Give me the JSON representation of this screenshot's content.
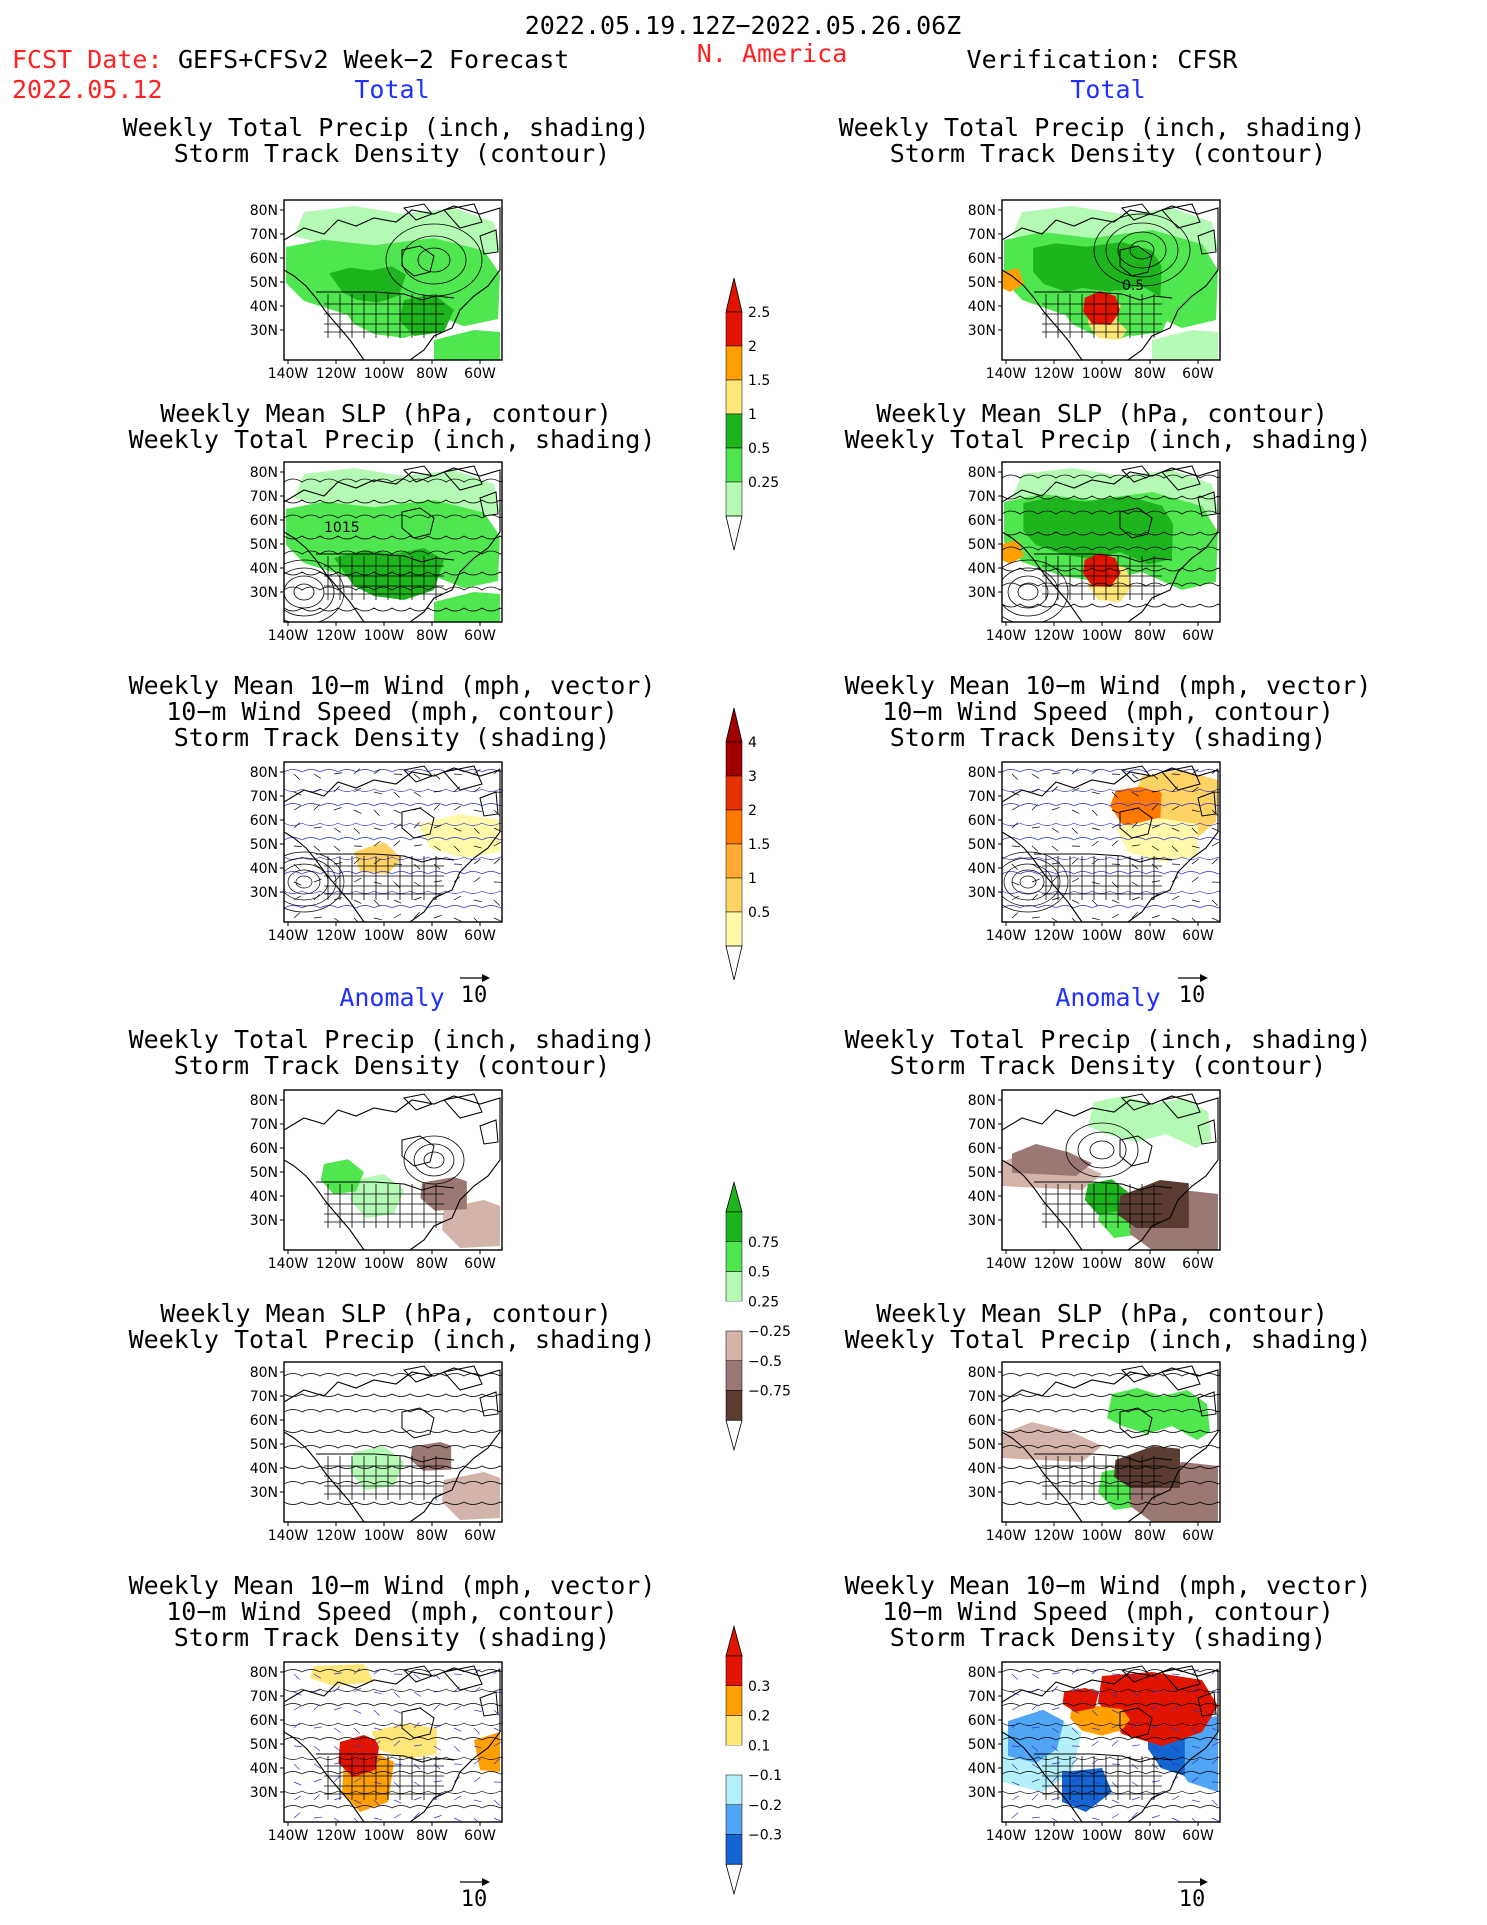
{
  "header": {
    "period": "2022.05.19.12Z−2022.05.26.06Z",
    "fcst_label": "FCST Date:",
    "model": "GEFS+CFSv2 Week−2 Forecast",
    "fcst_date": "2022.05.12",
    "region": "N. America",
    "verification": "Verification: CFSR"
  },
  "sections": {
    "total": "Total",
    "anomaly": "Anomaly"
  },
  "titles": {
    "precip_track": [
      "Weekly Total Precip (inch, shading)",
      "Storm Track Density (contour)"
    ],
    "slp_precip": [
      "Weekly Mean SLP (hPa, contour)",
      "Weekly Total Precip (inch, shading)"
    ],
    "wind_track": [
      "Weekly Mean 10−m Wind (mph, vector)",
      "10−m Wind Speed (mph, contour)",
      "Storm Track Density (shading)"
    ]
  },
  "axes": {
    "lat_ticks": [
      "80N",
      "70N",
      "60N",
      "50N",
      "40N",
      "30N"
    ],
    "lon_ticks": [
      "140W",
      "120W",
      "100W",
      "80W",
      "60W"
    ]
  },
  "vector_ref": "10",
  "map_labels": {
    "slp_isobar": "1015",
    "track_contour": "0.5"
  },
  "chart_data": [
    {
      "type": "heatmap",
      "name": "colorbar-total-precip",
      "levels": [
        "0.25",
        "0.5",
        "1",
        "1.5",
        "2",
        "2.5"
      ],
      "colors": [
        "#b4fab4",
        "#50e650",
        "#1eb41e",
        "#ffe678",
        "#ffa000",
        "#e11400"
      ]
    },
    {
      "type": "heatmap",
      "name": "colorbar-total-track",
      "levels": [
        "0.5",
        "1",
        "1.5",
        "2",
        "3",
        "4"
      ],
      "colors": [
        "#fffaaa",
        "#ffd264",
        "#ffaa32",
        "#ff7800",
        "#e63200",
        "#a00000"
      ]
    },
    {
      "type": "heatmap",
      "name": "colorbar-anom-precip",
      "levels": [
        "−0.75",
        "−0.5",
        "−0.25",
        "0.25",
        "0.5",
        "0.75"
      ],
      "colors": [
        "#5a3c32",
        "#9b7873",
        "#d2b4aa",
        "#ffffff",
        "#b4fab4",
        "#50e650",
        "#1eb41e"
      ]
    },
    {
      "type": "heatmap",
      "name": "colorbar-anom-track",
      "levels": [
        "−0.3",
        "−0.2",
        "−0.1",
        "0.1",
        "0.2",
        "0.3"
      ],
      "colors": [
        "#1464d2",
        "#50a5f5",
        "#b4f0fa",
        "#ffffff",
        "#ffe678",
        "#ffa000",
        "#e11400"
      ]
    }
  ]
}
